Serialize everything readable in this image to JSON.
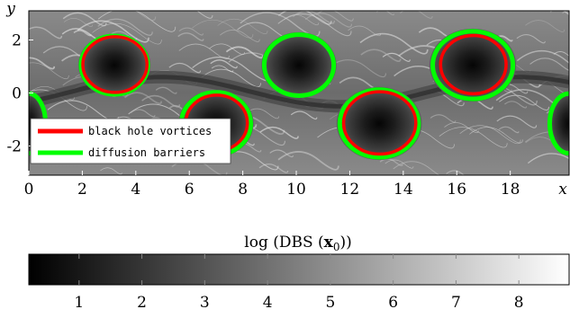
{
  "chart_data": {
    "type": "heatmap",
    "title": "",
    "x_axis": {
      "name": "x",
      "range": [
        0,
        20.2
      ],
      "ticks": [
        0,
        2,
        4,
        6,
        8,
        10,
        12,
        14,
        16,
        18
      ]
    },
    "y_axis": {
      "name": "y",
      "range": [
        -3.1,
        3.1
      ],
      "ticks": [
        -2,
        0,
        2
      ],
      "tick_labels": [
        "-2",
        "0",
        "2"
      ]
    },
    "xlabel": "log (DBS (x₀))",
    "colorbar": {
      "range": [
        0.2,
        8.8
      ],
      "ticks": [
        1,
        2,
        3,
        4,
        5,
        6,
        7,
        8
      ],
      "colormap": "gray"
    },
    "legend": {
      "placement": "bottom-left",
      "entries": [
        {
          "label": "black hole vortices",
          "color": "#ff0000"
        },
        {
          "label": "diffusion barriers",
          "color": "#00ff00"
        }
      ]
    },
    "vortices": [
      {
        "cx": 3.2,
        "cy": 1.05,
        "barrier_rx": 2.5,
        "barrier_ry": 2.2,
        "black_hole_rx": 2.4,
        "black_hole_ry": 2.1
      },
      {
        "cx": 10.1,
        "cy": 1.05,
        "barrier_rx": 2.6,
        "barrier_ry": 2.3,
        "black_hole_rx": 0,
        "black_hole_ry": 0
      },
      {
        "cx": 16.6,
        "cy": 1.05,
        "barrier_rx": 3.0,
        "barrier_ry": 2.55,
        "black_hole_rx": 2.45,
        "black_hole_ry": 2.2
      },
      {
        "cx": 0.0,
        "cy": -1.15,
        "barrier_rx": 1.25,
        "barrier_ry": 2.25,
        "black_hole_rx": 0,
        "black_hole_ry": 0
      },
      {
        "cx": 7.0,
        "cy": -1.15,
        "barrier_rx": 2.6,
        "barrier_ry": 2.35,
        "black_hole_rx": 2.3,
        "black_hole_ry": 2.1
      },
      {
        "cx": 13.1,
        "cy": -1.15,
        "barrier_rx": 2.95,
        "barrier_ry": 2.55,
        "black_hole_rx": 2.7,
        "black_hole_ry": 2.35
      },
      {
        "cx": 20.2,
        "cy": -1.15,
        "barrier_rx": 1.45,
        "barrier_ry": 2.25,
        "black_hole_rx": 0,
        "black_hole_ry": 0
      }
    ]
  }
}
